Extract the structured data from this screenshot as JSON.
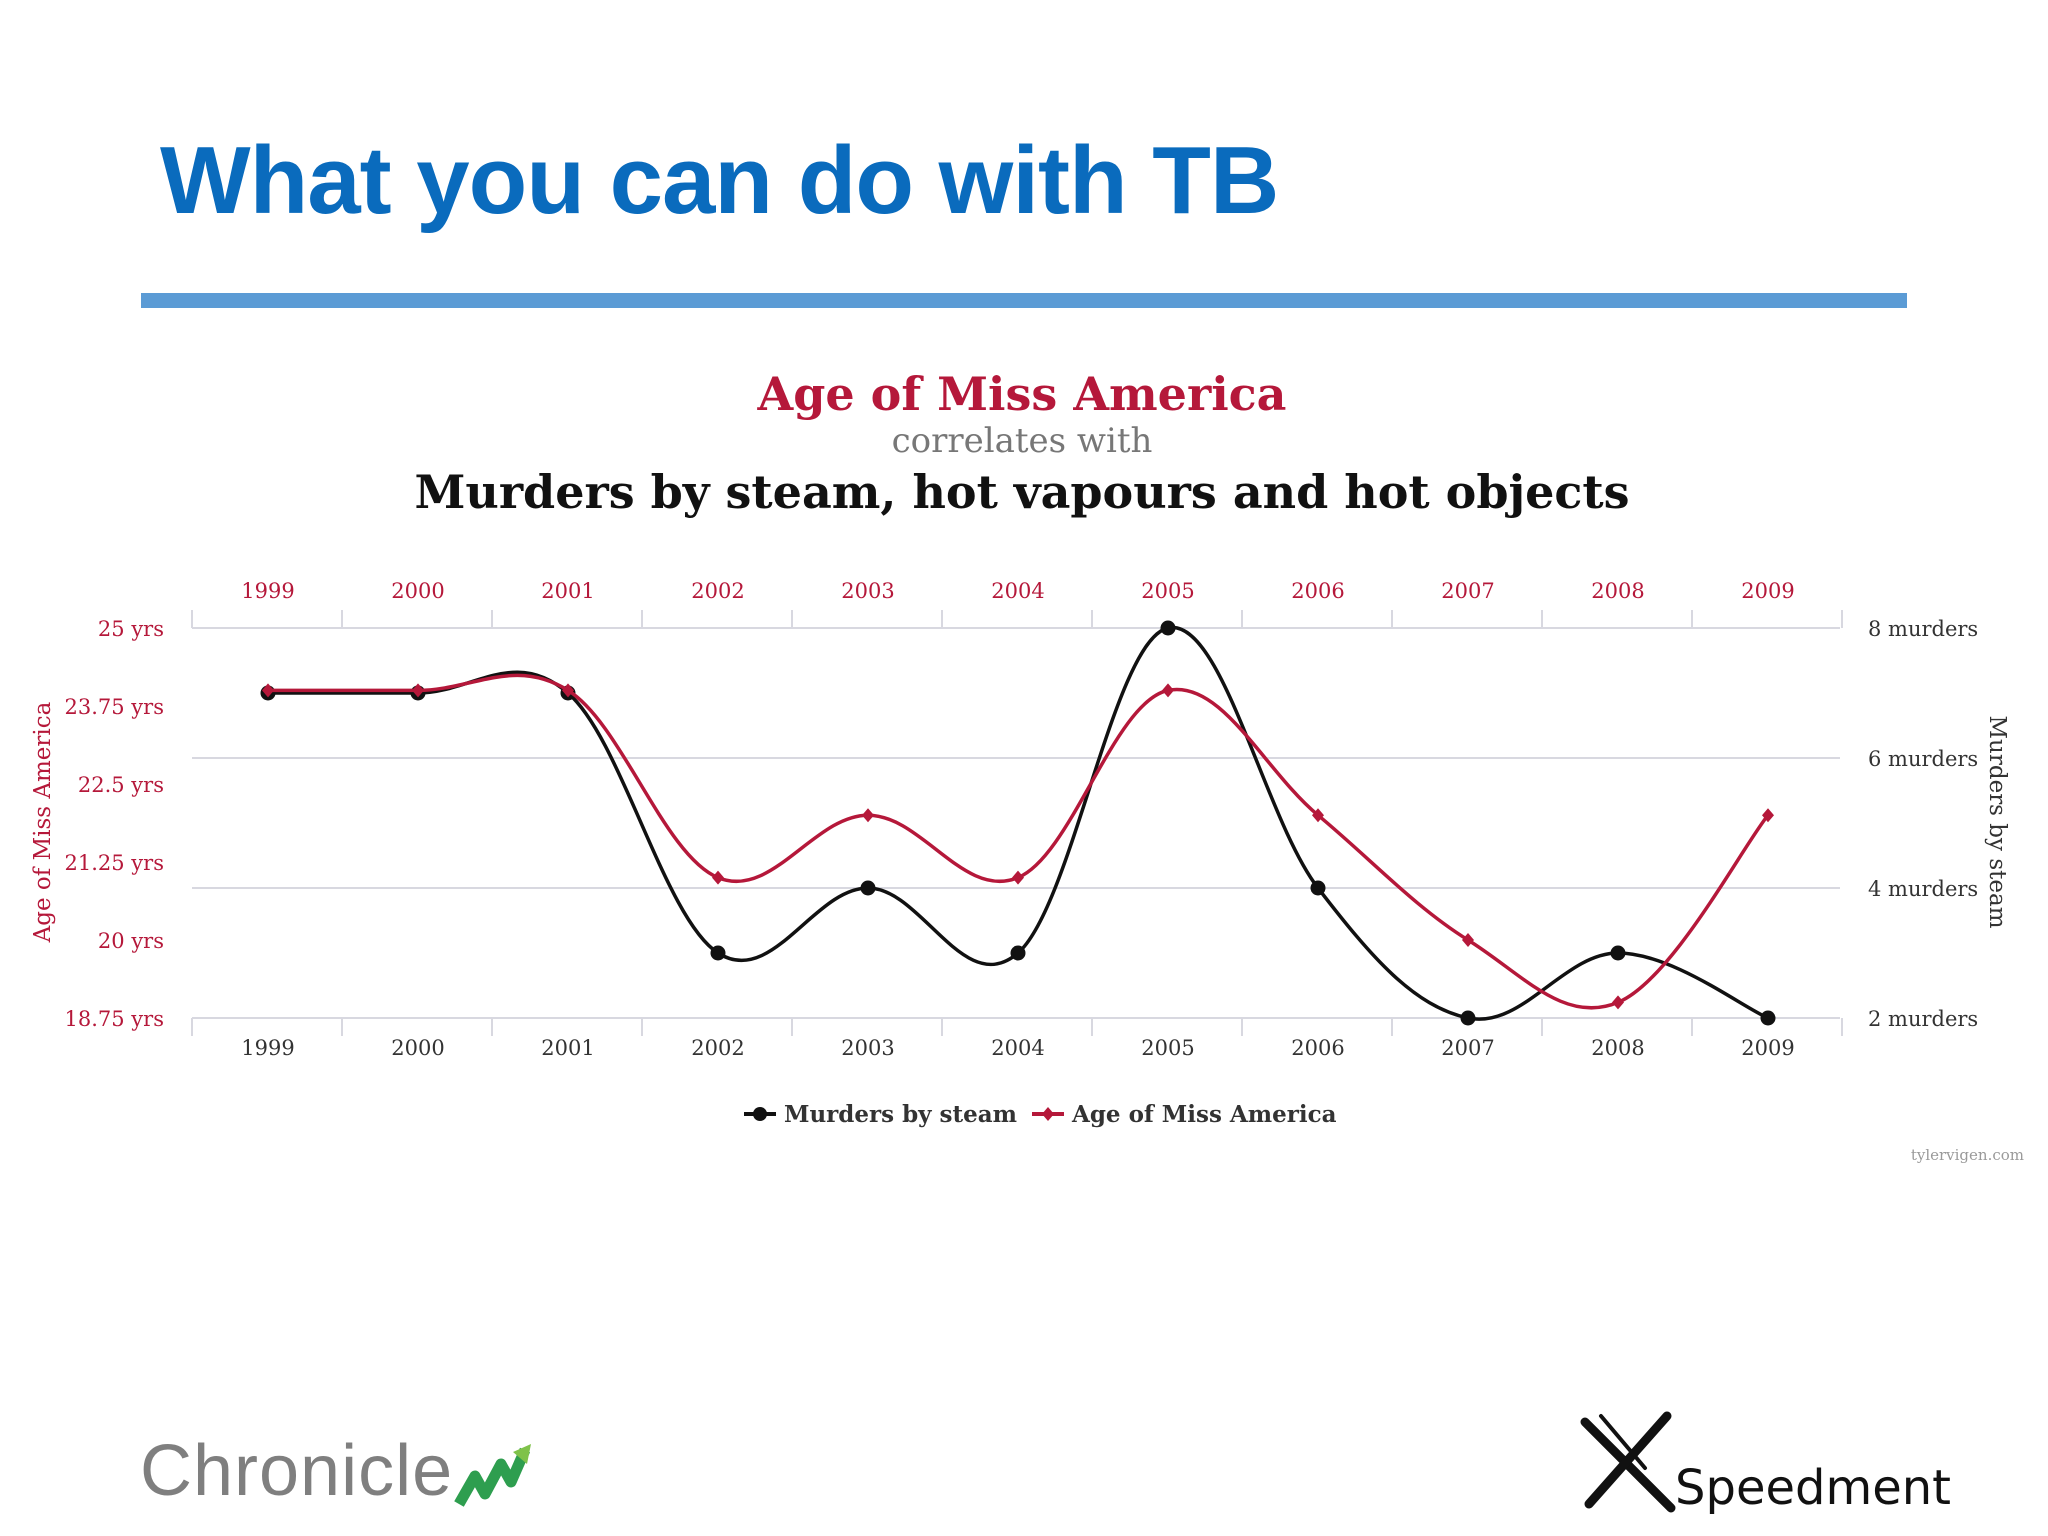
{
  "slide": {
    "title": "What you can do with TB"
  },
  "colors": {
    "title": "#0a6bbd",
    "rule": "#5b9bd5",
    "murders": "#111111",
    "age": "#b5183a",
    "grid": "#d8d8e0"
  },
  "logos": {
    "left": "Chronicle",
    "right": "Speedment",
    "left_icon": "chronicle-arrow-mark",
    "right_icon": "speedment-x-mark"
  },
  "chart_data": {
    "type": "line",
    "title": "Age of Miss America",
    "subtitle": "correlates with",
    "title2": "Murders by steam, hot vapours and hot objects",
    "categories": [
      "1999",
      "2000",
      "2001",
      "2002",
      "2003",
      "2004",
      "2005",
      "2006",
      "2007",
      "2008",
      "2009"
    ],
    "series": [
      {
        "name": "Murders by steam",
        "axis": "right",
        "values": [
          7,
          7,
          7,
          3,
          4,
          3,
          8,
          4,
          2,
          3,
          2
        ]
      },
      {
        "name": "Age of Miss America",
        "axis": "left",
        "values": [
          24,
          24,
          24,
          21,
          22,
          21,
          24,
          22,
          20,
          19,
          22
        ]
      }
    ],
    "left_axis": {
      "label": "Age of Miss America",
      "range": [
        18.75,
        25
      ],
      "ticks": [
        "25 yrs",
        "23.75 yrs",
        "22.5 yrs",
        "21.25 yrs",
        "20 yrs",
        "18.75 yrs"
      ]
    },
    "right_axis": {
      "label": "Murders by steam",
      "range": [
        2,
        8
      ],
      "ticks": [
        "8 murders",
        "6 murders",
        "4 murders",
        "2 murders"
      ]
    },
    "legend": [
      "Murders by steam",
      "Age of Miss America"
    ],
    "legend_position": "bottom-center",
    "source": "tylervigen.com",
    "grid": true
  }
}
